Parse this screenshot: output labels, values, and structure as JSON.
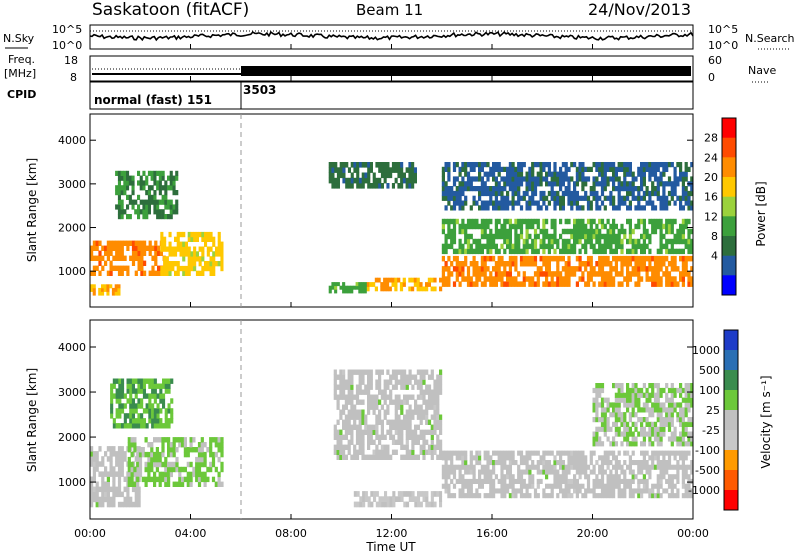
{
  "header": {
    "station": "Saskatoon (fitACF)",
    "beam": "Beam 11",
    "date": "24/Nov/2013"
  },
  "panels": {
    "nsky": {
      "label": "N.Sky",
      "ticks_left": [
        "10^5",
        "10^0"
      ],
      "ticks_right": [
        "10^5",
        "10^0"
      ],
      "right_label": "N.Search"
    },
    "freq": {
      "label_line1": "Freq.",
      "label_line2": "[MHz]",
      "ticks_left": [
        "18",
        "8"
      ],
      "ticks_right": [
        "60",
        "0"
      ],
      "right_label": "Nave"
    },
    "cpid": {
      "label": "CPID",
      "modes": [
        {
          "label": "normal (fast) 151",
          "start_hour": 0
        },
        {
          "label": "3503",
          "start_hour": 6
        }
      ]
    }
  },
  "axes": {
    "x_ticks": [
      "00:00",
      "04:00",
      "08:00",
      "12:00",
      "16:00",
      "20:00",
      "00:00"
    ],
    "x_label": "Time UT",
    "y_label": "Slant Range [km]",
    "y_ticks": [
      "1000",
      "2000",
      "3000",
      "4000"
    ]
  },
  "colorbars": {
    "power": {
      "title": "Power [dB]",
      "ticks": [
        "28",
        "24",
        "20",
        "16",
        "12",
        "8",
        "4"
      ],
      "colors": [
        "#ff0000",
        "#ff4b00",
        "#ff8c00",
        "#ffc800",
        "#9bd23c",
        "#3ca03c",
        "#2d6e3c",
        "#235aa0",
        "#0000ff"
      ]
    },
    "velocity": {
      "title": "Velocity [m s⁻¹]",
      "ticks": [
        "1000",
        "500",
        "100",
        "25",
        "-25",
        "-100",
        "-500",
        "-1000"
      ],
      "colors": [
        "#1e3cc8",
        "#2a6fb4",
        "#3a8c4e",
        "#6cc83a",
        "#c0c0c0",
        "#c8c8c8",
        "#ff9a00",
        "#ff5a00",
        "#ff0000"
      ]
    }
  },
  "chart_data": [
    {
      "type": "heatmap",
      "title": "Saskatoon (fitACF) Beam 11 24/Nov/2013",
      "quantity": "Power",
      "unit": "dB",
      "xlabel": "Time UT",
      "ylabel": "Slant Range [km]",
      "xlim_hours": [
        0,
        24
      ],
      "ylim_km": [
        180,
        4600
      ],
      "clim": [
        0,
        30
      ],
      "regions": [
        {
          "t0": 0.0,
          "t1": 3.0,
          "r0": 900,
          "r1": 1700,
          "value": 22
        },
        {
          "t0": 0.0,
          "t1": 1.2,
          "r0": 450,
          "r1": 700,
          "value": 20
        },
        {
          "t0": 2.8,
          "t1": 5.3,
          "r0": 900,
          "r1": 1900,
          "value": 18
        },
        {
          "t0": 1.0,
          "t1": 3.5,
          "r0": 2200,
          "r1": 3300,
          "value": 10
        },
        {
          "t0": 9.5,
          "t1": 13.0,
          "r0": 2900,
          "r1": 3500,
          "value": 8
        },
        {
          "t0": 11.0,
          "t1": 14.0,
          "r0": 550,
          "r1": 850,
          "value": 20
        },
        {
          "t0": 9.5,
          "t1": 11.0,
          "r0": 500,
          "r1": 750,
          "value": 12
        },
        {
          "t0": 14.0,
          "t1": 24.0,
          "r0": 650,
          "r1": 1350,
          "value": 22
        },
        {
          "t0": 14.0,
          "t1": 24.0,
          "r0": 1400,
          "r1": 2200,
          "value": 12
        },
        {
          "t0": 14.0,
          "t1": 24.0,
          "r0": 2400,
          "r1": 3500,
          "value": 6
        }
      ]
    },
    {
      "type": "heatmap",
      "quantity": "Velocity",
      "unit": "m s-1",
      "xlabel": "Time UT",
      "ylabel": "Slant Range [km]",
      "xlim_hours": [
        0,
        24
      ],
      "ylim_km": [
        180,
        4600
      ],
      "clim": [
        -1000,
        1000
      ],
      "regions": [
        {
          "t0": 0.0,
          "t1": 2.0,
          "r0": 450,
          "r1": 1800,
          "value": 0
        },
        {
          "t0": 1.5,
          "t1": 5.3,
          "r0": 900,
          "r1": 2000,
          "value": 150
        },
        {
          "t0": 0.8,
          "t1": 3.3,
          "r0": 2200,
          "r1": 3300,
          "value": 300
        },
        {
          "t0": 9.7,
          "t1": 14.0,
          "r0": 1500,
          "r1": 3500,
          "value": 0
        },
        {
          "t0": 10.5,
          "t1": 14.0,
          "r0": 450,
          "r1": 800,
          "value": -150
        },
        {
          "t0": 14.0,
          "t1": 24.0,
          "r0": 650,
          "r1": 1700,
          "value": 0
        },
        {
          "t0": 20.0,
          "t1": 24.0,
          "r0": 1800,
          "r1": 3200,
          "value": 100
        }
      ]
    }
  ]
}
